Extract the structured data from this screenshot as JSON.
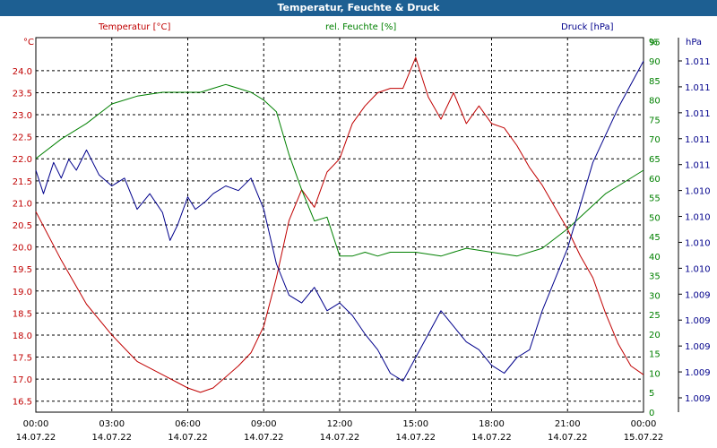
{
  "title": "Temperatur, Feuchte & Druck",
  "chart_data": {
    "type": "line",
    "title": "Temperatur, Feuchte & Druck",
    "grid": true,
    "legend": "none",
    "x_ticks": [
      {
        "time": "00:00",
        "date": "14.07.22"
      },
      {
        "time": "03:00",
        "date": "14.07.22"
      },
      {
        "time": "06:00",
        "date": "14.07.22"
      },
      {
        "time": "09:00",
        "date": "14.07.22"
      },
      {
        "time": "12:00",
        "date": "14.07.22"
      },
      {
        "time": "15:00",
        "date": "14.07.22"
      },
      {
        "time": "18:00",
        "date": "14.07.22"
      },
      {
        "time": "21:00",
        "date": "14.07.22"
      },
      {
        "time": "00:00",
        "date": "15.07.22"
      }
    ],
    "xlim": [
      "14.07.22 00:00",
      "15.07.22 00:00"
    ],
    "axes": {
      "temperature": {
        "label": "Temperatur [°C]",
        "unit": "°C",
        "color": "#c00000",
        "ylim": [
          16.25,
          24.75
        ],
        "ticks": [
          16.5,
          17.0,
          17.5,
          18.0,
          18.5,
          19.0,
          19.5,
          20.0,
          20.5,
          21.0,
          21.5,
          22.0,
          22.5,
          23.0,
          23.5,
          24.0
        ]
      },
      "humidity": {
        "label": "rel. Feuchte [%]",
        "unit": "%",
        "color": "#008000",
        "ylim": [
          0,
          96
        ],
        "ticks": [
          0,
          5,
          10,
          15,
          20,
          25,
          30,
          35,
          40,
          45,
          50,
          55,
          60,
          65,
          70,
          75,
          80,
          85,
          90,
          95
        ]
      },
      "pressure": {
        "label": "Druck [hPa]",
        "unit": "hPa",
        "color": "#00008b",
        "ylim": [
          1008.8,
          1011.2
        ],
        "tick_labels": [
          "1.011",
          "1.011",
          "1.011",
          "1.011",
          "1.011",
          "1.010",
          "1.010",
          "1.010",
          "1.010",
          "1.009",
          "1.009",
          "1.009",
          "1.009",
          "1.009"
        ]
      }
    },
    "series": [
      {
        "name": "Temperatur [°C]",
        "axis": "temperature",
        "x": [
          0,
          1,
          2,
          3,
          4,
          5,
          6,
          6.5,
          7,
          8,
          8.5,
          9,
          9.5,
          10,
          10.5,
          11,
          11.5,
          12,
          12.5,
          13,
          13.5,
          14,
          14.5,
          15,
          15.5,
          16,
          16.5,
          17,
          17.5,
          18,
          18.5,
          19,
          19.5,
          20,
          20.5,
          21,
          21.5,
          22,
          22.5,
          23,
          23.5,
          24
        ],
        "values": [
          20.8,
          19.7,
          18.7,
          18.0,
          17.4,
          17.1,
          16.8,
          16.7,
          16.8,
          17.3,
          17.6,
          18.2,
          19.3,
          20.6,
          21.3,
          20.9,
          21.7,
          22.0,
          22.8,
          23.2,
          23.5,
          23.6,
          23.6,
          24.3,
          23.4,
          22.9,
          23.5,
          22.8,
          23.2,
          22.8,
          22.7,
          22.3,
          21.8,
          21.4,
          20.9,
          20.4,
          19.8,
          19.3,
          18.5,
          17.8,
          17.3,
          17.1
        ]
      },
      {
        "name": "rel. Feuchte [%]",
        "axis": "humidity",
        "x": [
          0,
          1,
          2,
          3,
          4,
          5,
          6,
          6.5,
          7,
          7.5,
          8,
          8.5,
          9,
          9.5,
          10,
          10.5,
          11,
          11.5,
          12,
          12.5,
          13,
          13.5,
          14,
          15,
          16,
          17,
          18,
          19,
          20,
          21,
          22,
          22.5,
          23,
          24
        ],
        "values": [
          65,
          70,
          74,
          79,
          81,
          82,
          82,
          82,
          83,
          84,
          83,
          82,
          80,
          77,
          66,
          57,
          49,
          50,
          40,
          40,
          41,
          40,
          41,
          41,
          40,
          42,
          41,
          40,
          42,
          47,
          53,
          56,
          58,
          62
        ]
      },
      {
        "name": "Druck [hPa]",
        "axis": "pressure",
        "x": [
          0,
          0.3,
          0.7,
          1,
          1.3,
          1.6,
          2,
          2.5,
          3,
          3.5,
          4,
          4.5,
          5,
          5.3,
          5.6,
          6,
          6.3,
          6.7,
          7,
          7.5,
          8,
          8.5,
          9,
          9.5,
          10,
          10.5,
          11,
          11.5,
          12,
          12.5,
          13,
          13.5,
          14,
          14.5,
          15,
          15.5,
          16,
          16.5,
          17,
          17.5,
          18,
          18.5,
          19,
          19.5,
          20,
          21,
          22,
          23,
          24
        ],
        "values": [
          1010.35,
          1010.2,
          1010.4,
          1010.3,
          1010.42,
          1010.35,
          1010.48,
          1010.32,
          1010.25,
          1010.3,
          1010.1,
          1010.2,
          1010.08,
          1009.9,
          1010.0,
          1010.18,
          1010.1,
          1010.15,
          1010.2,
          1010.25,
          1010.22,
          1010.3,
          1010.1,
          1009.75,
          1009.55,
          1009.5,
          1009.6,
          1009.45,
          1009.5,
          1009.42,
          1009.3,
          1009.2,
          1009.05,
          1009.0,
          1009.15,
          1009.3,
          1009.45,
          1009.35,
          1009.25,
          1009.2,
          1009.1,
          1009.05,
          1009.15,
          1009.2,
          1009.45,
          1009.85,
          1010.4,
          1010.75,
          1011.05
        ]
      }
    ]
  }
}
